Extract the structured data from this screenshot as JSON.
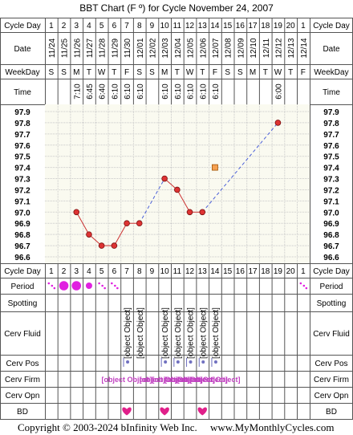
{
  "title": "BBT Chart (F º) for Cycle November 24, 2007",
  "labels": {
    "cycle_day": "Cycle Day",
    "date": "Date",
    "weekday": "WeekDay",
    "time": "Time",
    "period": "Period",
    "spotting": "Spotting",
    "cerv_fluid": "Cerv Fluid",
    "cerv_pos": "Cerv Pos",
    "cerv_firm": "Cerv Firm",
    "cerv_opn": "Cerv Opn",
    "bd": "BD"
  },
  "cycle_days": [
    "1",
    "2",
    "3",
    "4",
    "5",
    "6",
    "7",
    "8",
    "9",
    "10",
    "11",
    "12",
    "13",
    "14",
    "15",
    "16",
    "17",
    "18",
    "19",
    "20",
    "1"
  ],
  "dates": [
    "11/24",
    "11/25",
    "11/26",
    "11/27",
    "11/28",
    "11/29",
    "11/30",
    "12/01",
    "12/02",
    "12/03",
    "12/04",
    "12/05",
    "12/06",
    "12/07",
    "12/08",
    "12/09",
    "12/10",
    "12/11",
    "12/12",
    "12/13",
    "12/14"
  ],
  "weekdays": [
    "S",
    "S",
    "M",
    "T",
    "W",
    "T",
    "F",
    "S",
    "S",
    "M",
    "T",
    "W",
    "T",
    "F",
    "S",
    "S",
    "M",
    "T",
    "W",
    "T",
    "F"
  ],
  "times": [
    "",
    "",
    "7:10",
    "6:45",
    "6:40",
    "6:10",
    "6:10",
    "6:10",
    "",
    "6:10",
    "6:10",
    "6:10",
    "6:10",
    "6:10",
    "",
    "",
    "",
    "",
    "6:00",
    "",
    ""
  ],
  "temp_labels": [
    "97.9",
    "97.8",
    "97.7",
    "97.6",
    "97.5",
    "97.4",
    "97.3",
    "97.2",
    "97.1",
    "97.0",
    "96.9",
    "96.8",
    "96.7",
    "96.6"
  ],
  "chart_data": {
    "type": "line",
    "ylim": [
      96.6,
      97.9
    ],
    "x_unit": "cycle day",
    "points": [
      {
        "day": 3,
        "temp": 97.0
      },
      {
        "day": 4,
        "temp": 96.8
      },
      {
        "day": 5,
        "temp": 96.7
      },
      {
        "day": 6,
        "temp": 96.7
      },
      {
        "day": 7,
        "temp": 96.9
      },
      {
        "day": 8,
        "temp": 96.9
      },
      {
        "day": 10,
        "temp": 97.3
      },
      {
        "day": 11,
        "temp": 97.2
      },
      {
        "day": 12,
        "temp": 97.0
      },
      {
        "day": 13,
        "temp": 97.0
      },
      {
        "day": 19,
        "temp": 97.8
      }
    ],
    "marker_square": {
      "day": 14,
      "temp": 97.4
    },
    "line_color": "#cc3333",
    "dashed_color": "#4a5fd8",
    "point_color": "#dd3333",
    "square_color": "#f5a050"
  },
  "period": [
    {
      "day": 1,
      "type": "spot"
    },
    {
      "day": 2,
      "type": "dot"
    },
    {
      "day": 3,
      "type": "dot"
    },
    {
      "day": 4,
      "type": "dot-small"
    },
    {
      "day": 5,
      "type": "spot"
    },
    {
      "day": 6,
      "type": "spot"
    },
    {
      "day": 21,
      "type": "spot"
    }
  ],
  "cerv_fluid": [
    {
      "day": 7,
      "text": "Watery"
    },
    {
      "day": 8,
      "text": "Sticky"
    },
    {
      "day": 10,
      "text": "Eggwhite"
    },
    {
      "day": 11,
      "text": "Eggwhite"
    },
    {
      "day": 12,
      "text": "Creamy"
    },
    {
      "day": 13,
      "text": "Creamy"
    },
    {
      "day": 14,
      "text": "Creamy"
    }
  ],
  "cerv_pos_days": [
    7,
    10,
    11,
    12,
    13,
    14
  ],
  "cerv_firm": [
    {
      "day": 7,
      "text": "M"
    },
    {
      "day": 10,
      "text": "S"
    },
    {
      "day": 11,
      "text": "S"
    },
    {
      "day": 12,
      "text": "M"
    },
    {
      "day": 13,
      "text": "M"
    },
    {
      "day": 14,
      "text": "S"
    }
  ],
  "bd_days": [
    7,
    10,
    13
  ],
  "footer": {
    "copyright": "Copyright © 2003-2024 bInfinity Web Inc.",
    "site": "www.MyMonthlyCycles.com"
  },
  "colors": {
    "grid_bg": "#fafaf0",
    "period": "#e020e0",
    "firm_text": "#c040c0",
    "heart": "#e0208a",
    "pos_bar": "#7070c0"
  }
}
